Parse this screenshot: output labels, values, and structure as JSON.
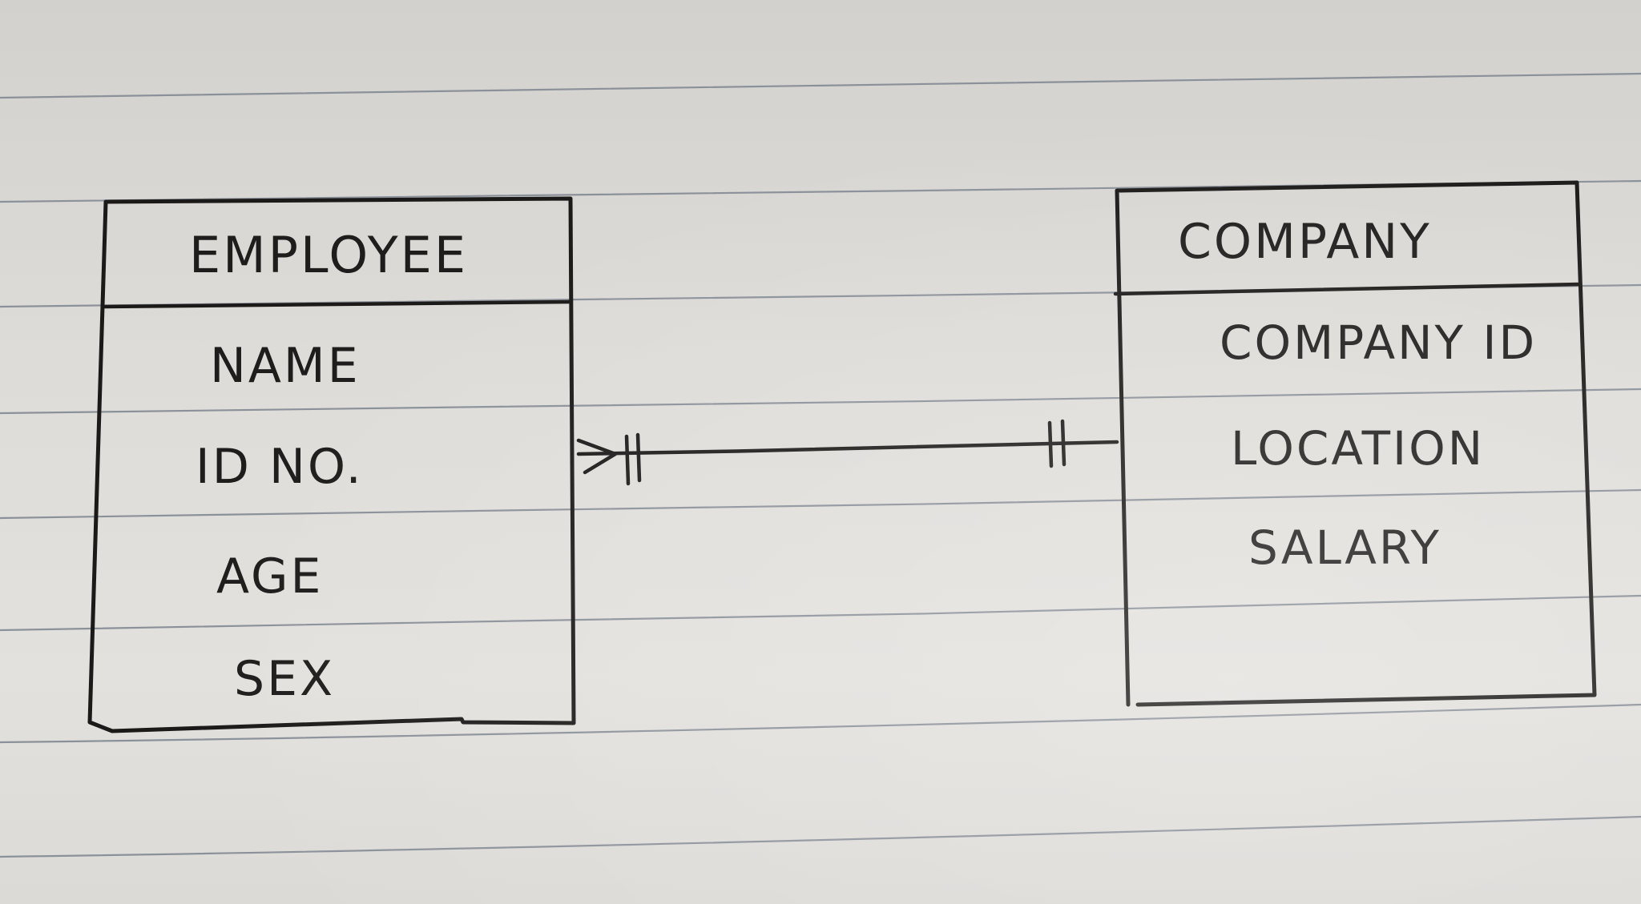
{
  "entities": [
    {
      "name": "EMPLOYEE",
      "attributes": [
        "NAME",
        "ID NO.",
        "AGE",
        "SEX"
      ]
    },
    {
      "name": "COMPANY",
      "attributes": [
        "COMPANY ID",
        "LOCATION",
        "SALARY"
      ]
    }
  ],
  "relationship": {
    "from": "EMPLOYEE",
    "to": "COMPANY",
    "from_cardinality": "one-or-many",
    "to_cardinality": "one-and-only-one"
  },
  "colors": {
    "ink": "#1b1a18",
    "rule_lines": "#8b919a",
    "paper": "#dedcd8"
  }
}
